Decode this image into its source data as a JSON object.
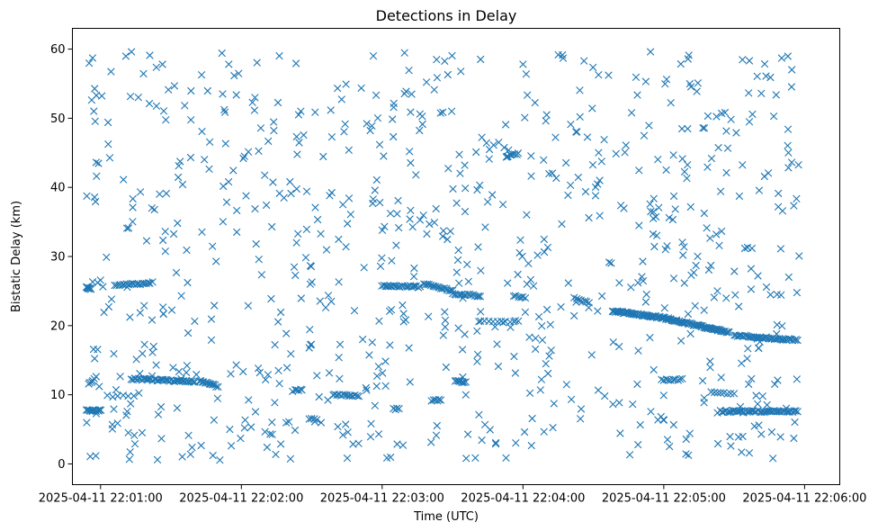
{
  "chart_data": {
    "type": "scatter",
    "title": "Detections in Delay",
    "xlabel": "Time (UTC)",
    "ylabel": "Bistatic Delay (km)",
    "x_unit": "seconds after 2025-04-11 22:00:00 UTC",
    "xlim": [
      48,
      375
    ],
    "ylim": [
      -3,
      63
    ],
    "x_ticks": [
      {
        "value": 60,
        "label": "2025-04-11 22:01:00"
      },
      {
        "value": 120,
        "label": "2025-04-11 22:02:00"
      },
      {
        "value": 180,
        "label": "2025-04-11 22:03:00"
      },
      {
        "value": 240,
        "label": "2025-04-11 22:04:00"
      },
      {
        "value": 300,
        "label": "2025-04-11 22:05:00"
      },
      {
        "value": 360,
        "label": "2025-04-11 22:06:00"
      }
    ],
    "y_ticks": [
      {
        "value": 0,
        "label": "0"
      },
      {
        "value": 10,
        "label": "10"
      },
      {
        "value": 20,
        "label": "20"
      },
      {
        "value": 30,
        "label": "30"
      },
      {
        "value": 40,
        "label": "40"
      },
      {
        "value": 50,
        "label": "50"
      },
      {
        "value": 60,
        "label": "60"
      }
    ],
    "marker": "x",
    "color": "#1f77b4",
    "grid": false,
    "legend": "none",
    "tracks": [
      {
        "x_start": 54,
        "x_end": 56,
        "y_start": 25.5,
        "y_end": 25.3,
        "count": 8
      },
      {
        "x_start": 54,
        "x_end": 60,
        "y_start": 7.7,
        "y_end": 7.7,
        "count": 14
      },
      {
        "x_start": 55,
        "x_end": 58,
        "y_start": 11.5,
        "y_end": 12.5,
        "count": 6
      },
      {
        "x_start": 66,
        "x_end": 82,
        "y_start": 25.8,
        "y_end": 26.2,
        "count": 20
      },
      {
        "x_start": 63,
        "x_end": 74,
        "y_start": 9.8,
        "y_end": 9.8,
        "count": 6
      },
      {
        "x_start": 73,
        "x_end": 100,
        "y_start": 12.3,
        "y_end": 11.9,
        "count": 42
      },
      {
        "x_start": 102,
        "x_end": 110,
        "y_start": 12.0,
        "y_end": 11.2,
        "count": 14
      },
      {
        "x_start": 142,
        "x_end": 146,
        "y_start": 10.6,
        "y_end": 10.7,
        "count": 6
      },
      {
        "x_start": 149,
        "x_end": 152,
        "y_start": 6.5,
        "y_end": 6.5,
        "count": 4
      },
      {
        "x_start": 159,
        "x_end": 170,
        "y_start": 10.0,
        "y_end": 9.8,
        "count": 14
      },
      {
        "x_start": 180,
        "x_end": 196,
        "y_start": 25.8,
        "y_end": 25.6,
        "count": 24
      },
      {
        "x_start": 198,
        "x_end": 210,
        "y_start": 26.0,
        "y_end": 25.0,
        "count": 18
      },
      {
        "x_start": 210,
        "x_end": 222,
        "y_start": 24.6,
        "y_end": 24.3,
        "count": 16
      },
      {
        "x_start": 185,
        "x_end": 187,
        "y_start": 8.0,
        "y_end": 7.9,
        "count": 4
      },
      {
        "x_start": 201,
        "x_end": 205,
        "y_start": 9.2,
        "y_end": 9.2,
        "count": 6
      },
      {
        "x_start": 211,
        "x_end": 215,
        "y_start": 12.0,
        "y_end": 11.8,
        "count": 8
      },
      {
        "x_start": 233,
        "x_end": 238,
        "y_start": 44.5,
        "y_end": 44.9,
        "count": 8
      },
      {
        "x_start": 222,
        "x_end": 238,
        "y_start": 20.7,
        "y_end": 20.6,
        "count": 10
      },
      {
        "x_start": 236,
        "x_end": 241,
        "y_start": 24.3,
        "y_end": 24.1,
        "count": 6
      },
      {
        "x_start": 262,
        "x_end": 268,
        "y_start": 24.1,
        "y_end": 23.2,
        "count": 8
      },
      {
        "x_start": 278,
        "x_end": 300,
        "y_start": 22.1,
        "y_end": 21.1,
        "count": 55
      },
      {
        "x_start": 300,
        "x_end": 328,
        "y_start": 21.1,
        "y_end": 19.0,
        "count": 65
      },
      {
        "x_start": 330,
        "x_end": 357,
        "y_start": 18.6,
        "y_end": 17.9,
        "count": 42
      },
      {
        "x_start": 320,
        "x_end": 330,
        "y_start": 10.3,
        "y_end": 10.2,
        "count": 8
      },
      {
        "x_start": 299,
        "x_end": 308,
        "y_start": 12.2,
        "y_end": 12.2,
        "count": 10
      },
      {
        "x_start": 324,
        "x_end": 357,
        "y_start": 7.6,
        "y_end": 7.6,
        "count": 50
      }
    ],
    "background": {
      "count": 780,
      "x_range": [
        54,
        358
      ],
      "y_range": [
        0.5,
        59.7
      ]
    }
  }
}
